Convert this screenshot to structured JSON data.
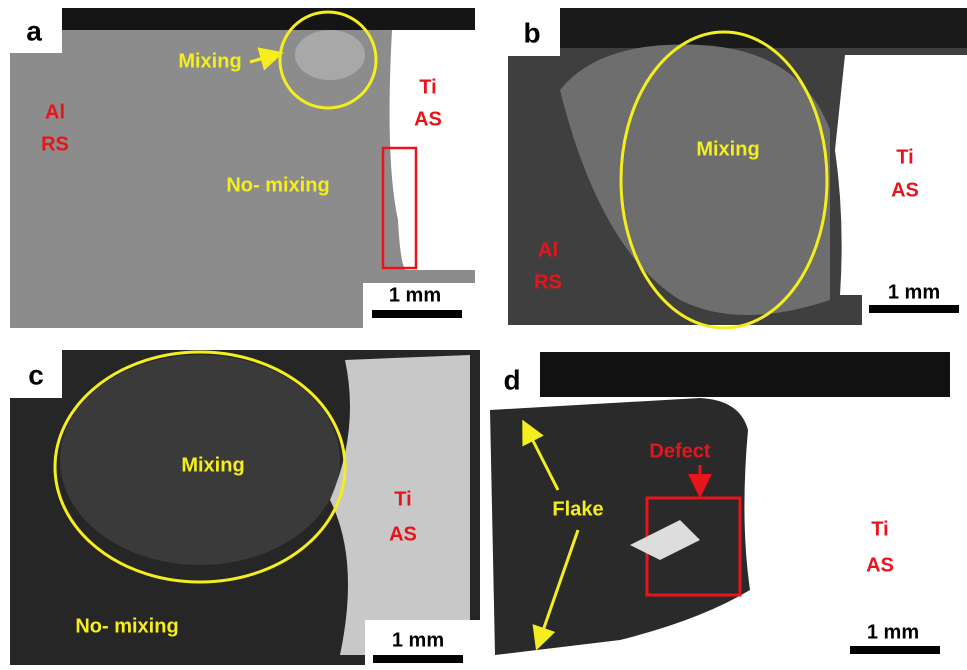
{
  "panels": [
    {
      "label": "a",
      "texts": [
        "Mixing",
        "Al",
        "RS",
        "Ti",
        "AS",
        "No- mixing"
      ],
      "scale_bar": "1 mm"
    },
    {
      "label": "b",
      "texts": [
        "Mixing",
        "Ti",
        "AS",
        "Al",
        "RS"
      ],
      "scale_bar": "1 mm"
    },
    {
      "label": "c",
      "texts": [
        "Mixing",
        "Ti",
        "AS",
        "No- mixing"
      ],
      "scale_bar": "1 mm"
    },
    {
      "label": "d",
      "texts": [
        "Defect",
        "Flake",
        "Ti",
        "AS"
      ],
      "scale_bar": "1 mm"
    }
  ]
}
